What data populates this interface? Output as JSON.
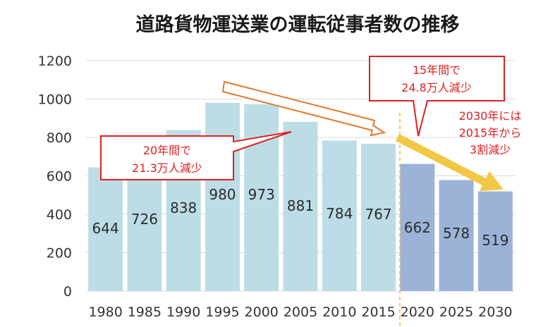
{
  "chart_data": {
    "type": "bar",
    "title": "道路貨物運送業の運転従事者数の推移",
    "categories": [
      "1980",
      "1985",
      "1990",
      "1995",
      "2000",
      "2005",
      "2010",
      "2015",
      "2020",
      "2025",
      "2030"
    ],
    "values": [
      644,
      726,
      838,
      980,
      973,
      881,
      784,
      767,
      662,
      578,
      519
    ],
    "data_labels": [
      "644",
      "726",
      "838",
      "980",
      "973",
      "881",
      "784",
      "767",
      "662",
      "578",
      "519"
    ],
    "projected_from_index": 8,
    "ylim": [
      0,
      1200
    ],
    "yticks": [
      0,
      200,
      400,
      600,
      800,
      1000,
      1200
    ],
    "ytick_labels": [
      "0",
      "200",
      "400",
      "600",
      "800",
      "1000",
      "1200"
    ],
    "grid": true,
    "colors": {
      "actual": "#bcdde6",
      "projected": "#9cb3d8",
      "grid": "#d9d9d9",
      "callout_border": "#e02020",
      "callout_text": "#e02020",
      "arrow_outline": "#e07a2a",
      "arrow_fill": "#f2c744",
      "divider": "#f2b632"
    },
    "annotations": {
      "callout_left": [
        "20年間で",
        "21.3万人減少"
      ],
      "callout_right": [
        "15年間で",
        "24.8万人減少"
      ],
      "note_right": [
        "2030年には",
        "2015年から",
        "3割減少"
      ]
    }
  }
}
